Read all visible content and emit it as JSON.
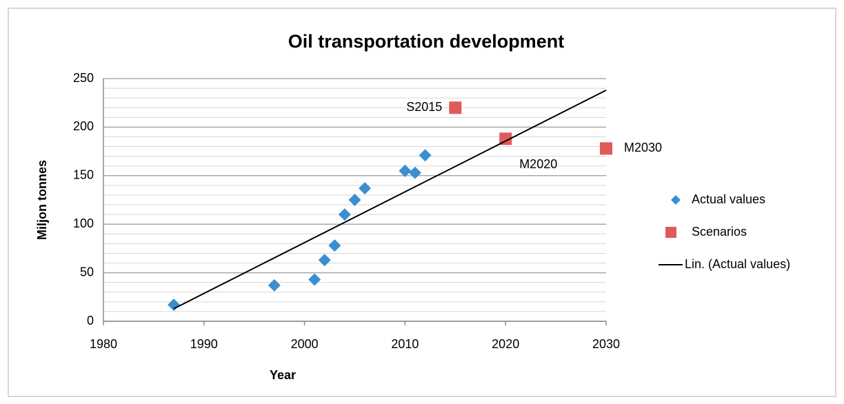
{
  "chart_data": {
    "type": "scatter",
    "title": "Oil transportation development",
    "xlabel": "Year",
    "ylabel": "Miljon tonnes",
    "xlim": [
      1980,
      2030
    ],
    "xticks": [
      1980,
      1990,
      2000,
      2010,
      2020,
      2030
    ],
    "ylim": [
      0,
      250
    ],
    "yticks": [
      0,
      50,
      100,
      150,
      200,
      250
    ],
    "grid": true,
    "minor_grid_step": 10,
    "legend": "right",
    "series": [
      {
        "name": "Actual values",
        "color": "#3a8fd0",
        "marker": "diamond",
        "x": [
          1987,
          1997,
          2001,
          2002,
          2003,
          2004,
          2005,
          2006,
          2010,
          2011,
          2012
        ],
        "values": [
          17,
          37,
          43,
          63,
          78,
          110,
          125,
          137,
          155,
          153,
          171
        ]
      },
      {
        "name": "Scenarios",
        "color": "#e05a5a",
        "marker": "square",
        "x": [
          2015,
          2020,
          2030
        ],
        "values": [
          220,
          188,
          178
        ],
        "point_labels": [
          "S2015",
          "M2020",
          "M2030"
        ]
      },
      {
        "name": "Lin. (Actual values)",
        "color": "#000000",
        "marker": "line",
        "x": [
          1987,
          2030
        ],
        "values": [
          13,
          238
        ]
      }
    ]
  }
}
